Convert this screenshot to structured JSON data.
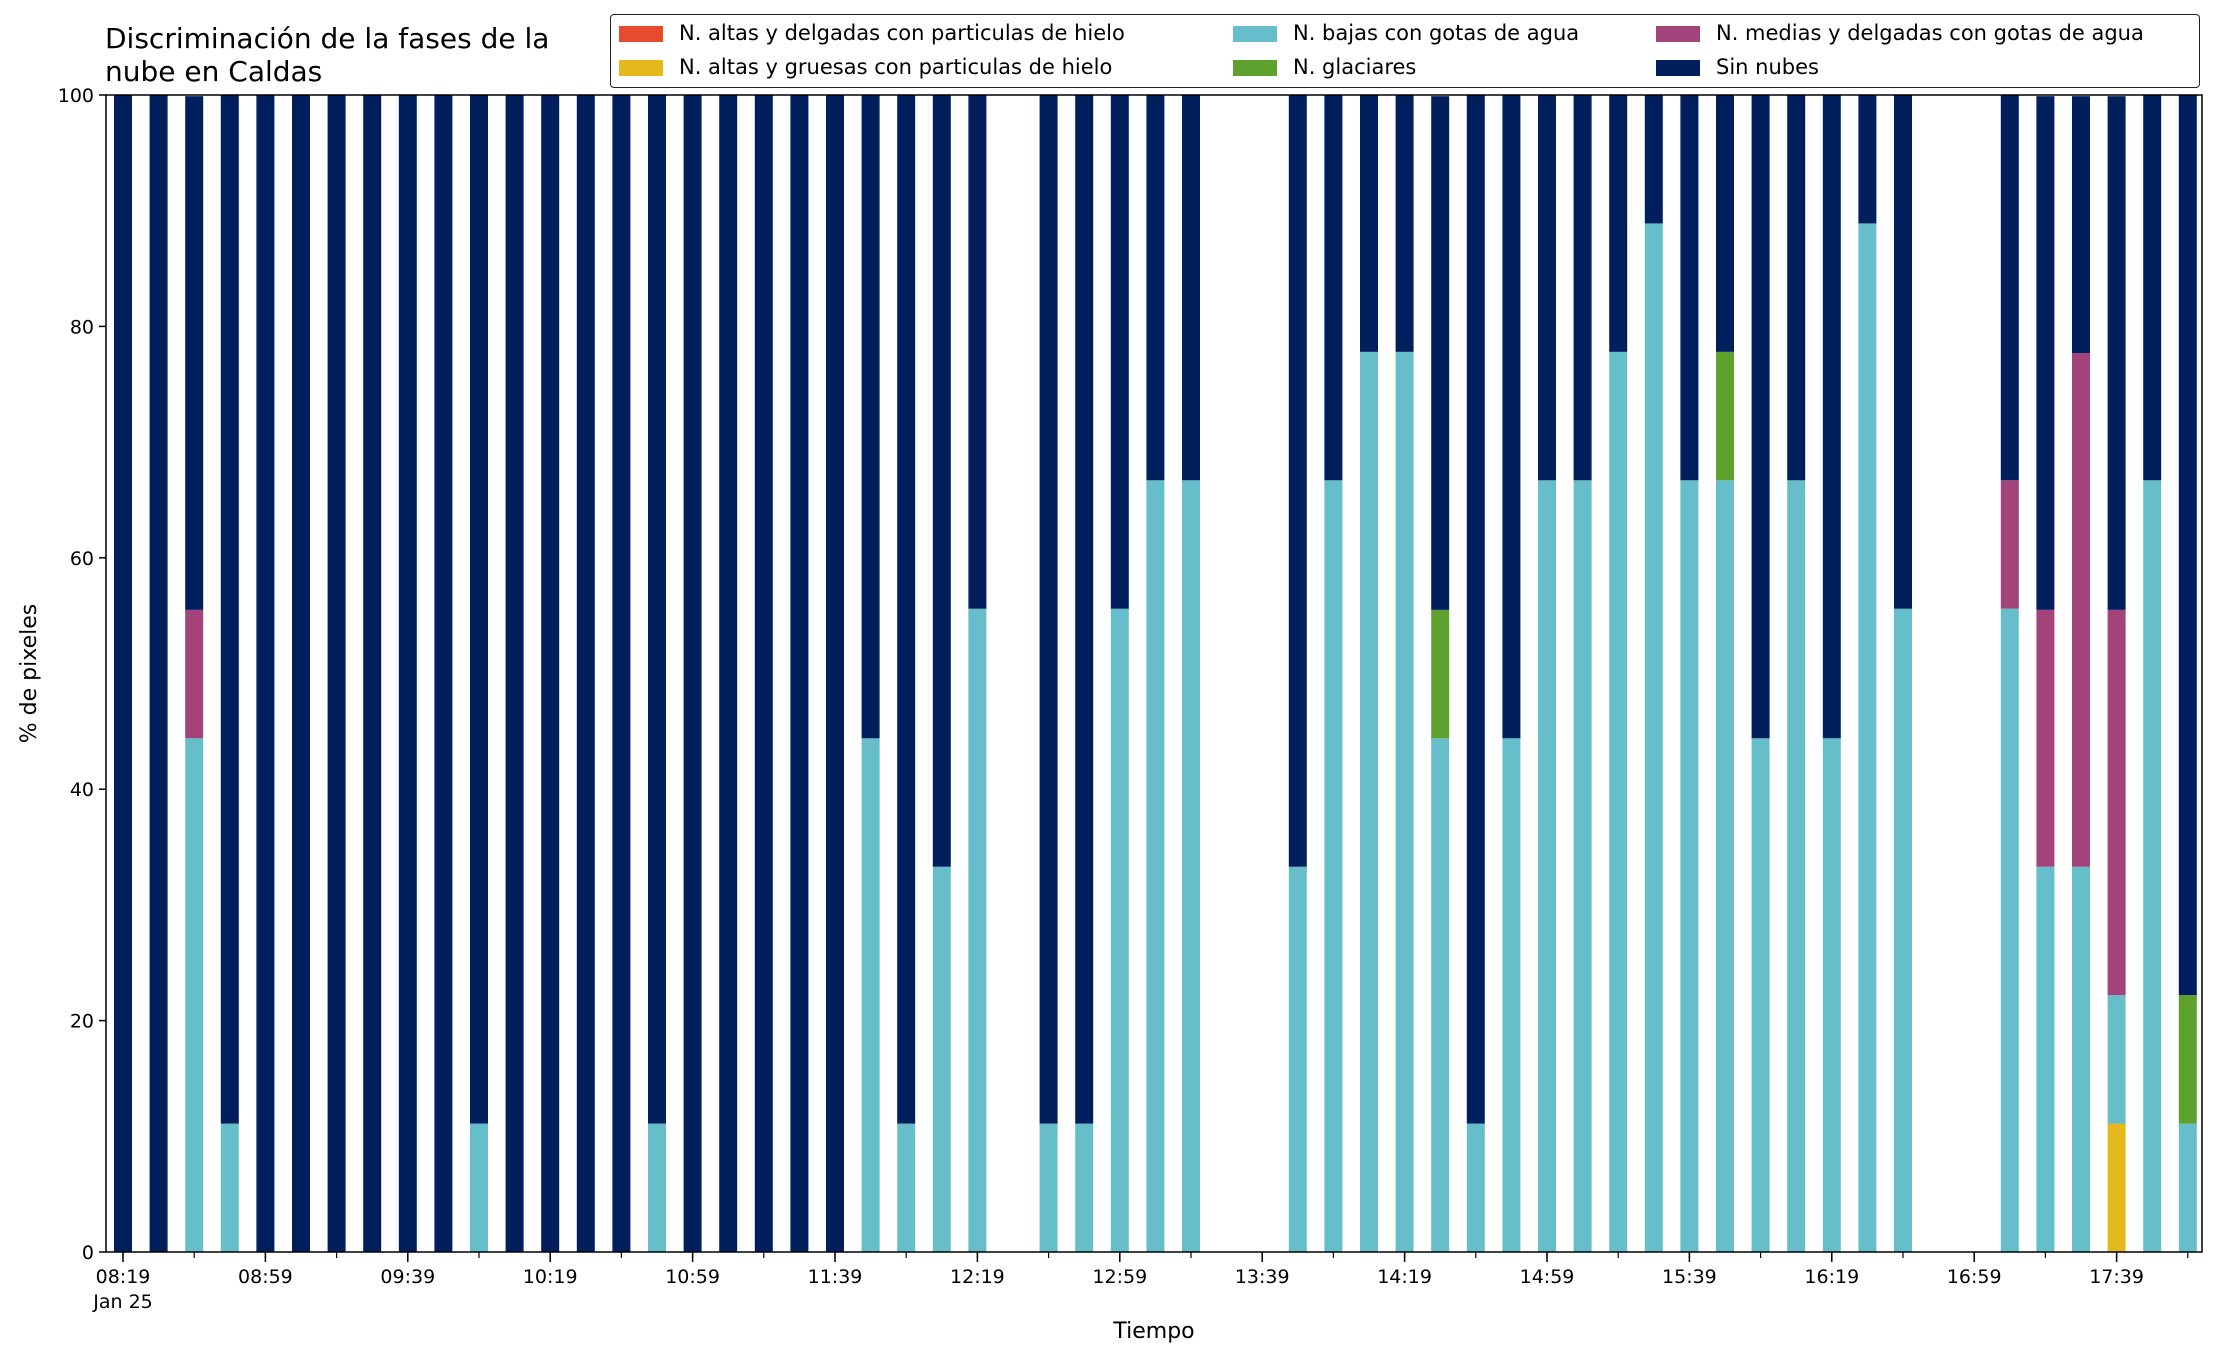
{
  "chart_data": {
    "type": "bar",
    "stacked": true,
    "title": "Discriminación de la fases de la nube en Caldas",
    "title_lines": [
      "Discriminación de la fases de la",
      "nube en Caldas"
    ],
    "xlabel": "Tiempo",
    "ylabel": "% de pixeles",
    "ylim": [
      0,
      100
    ],
    "yticks": [
      0,
      20,
      40,
      60,
      80,
      100
    ],
    "xtick_labels": [
      "08:19",
      "08:59",
      "09:39",
      "10:19",
      "10:59",
      "11:39",
      "12:19",
      "12:59",
      "13:39",
      "14:19",
      "14:59",
      "15:39",
      "16:19",
      "16:59",
      "17:39"
    ],
    "xtick_sublabel": "Jan 25",
    "legend_position": "top",
    "grid": false,
    "bar_count": 59,
    "series": [
      {
        "name": "N. altas y delgadas con particulas de hielo",
        "color": "#e84a2f",
        "values": [
          0,
          0,
          0,
          0,
          0,
          0,
          0,
          0,
          0,
          0,
          0,
          0,
          0,
          0,
          0,
          0,
          0,
          0,
          0,
          0,
          0,
          0,
          0,
          0,
          0,
          0,
          0,
          0,
          0,
          0,
          0,
          0,
          0,
          0,
          0,
          0,
          0,
          0,
          0,
          0,
          0,
          0,
          0,
          0,
          0,
          0,
          0,
          0,
          0,
          0,
          0,
          0,
          0,
          0,
          0,
          0,
          0,
          0,
          0
        ]
      },
      {
        "name": "N. altas y gruesas con particulas de hielo",
        "color": "#e5b81b",
        "values": [
          0,
          0,
          0,
          0,
          0,
          0,
          0,
          0,
          0,
          0,
          0,
          0,
          0,
          0,
          0,
          0,
          0,
          0,
          0,
          0,
          0,
          0,
          0,
          0,
          0,
          0,
          0,
          0,
          0,
          0,
          0,
          0,
          0,
          0,
          0,
          0,
          0,
          0,
          0,
          0,
          0,
          0,
          0,
          0,
          0,
          0,
          0,
          0,
          0,
          0,
          0,
          0,
          0,
          0,
          0,
          0,
          11.1,
          0,
          0
        ]
      },
      {
        "name": "N. bajas con gotas de agua",
        "color": "#65bec9",
        "values": [
          0,
          0,
          44.4,
          11.1,
          0,
          0,
          0,
          0,
          0,
          0,
          11.1,
          0,
          0,
          0,
          0,
          11.1,
          0,
          0,
          0,
          0,
          0,
          44.4,
          11.1,
          33.3,
          55.6,
          0,
          11.1,
          11.1,
          55.6,
          66.7,
          66.7,
          0,
          0,
          33.3,
          66.7,
          77.8,
          77.8,
          44.4,
          11.1,
          44.4,
          66.7,
          66.7,
          77.8,
          88.9,
          66.7,
          66.7,
          44.4,
          66.7,
          44.4,
          88.9,
          55.6,
          0,
          0,
          55.6,
          33.3,
          33.3,
          11.1,
          66.7,
          11.1
        ]
      },
      {
        "name": "N. glaciares",
        "color": "#5fa12e",
        "values": [
          0,
          0,
          0,
          0,
          0,
          0,
          0,
          0,
          0,
          0,
          0,
          0,
          0,
          0,
          0,
          0,
          0,
          0,
          0,
          0,
          0,
          0,
          0,
          0,
          0,
          0,
          0,
          0,
          0,
          0,
          0,
          0,
          0,
          0,
          0,
          0,
          0,
          11.1,
          0,
          0,
          0,
          0,
          0,
          0,
          0,
          11.1,
          0,
          0,
          0,
          0,
          0,
          0,
          0,
          0,
          0,
          0,
          0,
          0,
          11.1
        ]
      },
      {
        "name": "N. medias y delgadas con gotas de agua",
        "color": "#a24479",
        "values": [
          0,
          0,
          11.1,
          0,
          0,
          0,
          0,
          0,
          0,
          0,
          0,
          0,
          0,
          0,
          0,
          0,
          0,
          0,
          0,
          0,
          0,
          0,
          0,
          0,
          0,
          0,
          0,
          0,
          0,
          0,
          0,
          0,
          0,
          0,
          0,
          0,
          0,
          0,
          0,
          0,
          0,
          0,
          0,
          0,
          0,
          0,
          0,
          0,
          0,
          0,
          0,
          0,
          0,
          11.1,
          22.2,
          44.4,
          33.3,
          0,
          0
        ]
      },
      {
        "name": "Sin nubes",
        "color": "#001f5c",
        "values": [
          100,
          100,
          44.4,
          88.9,
          100,
          100,
          100,
          100,
          100,
          100,
          88.9,
          100,
          100,
          100,
          100,
          88.9,
          100,
          100,
          100,
          100,
          100,
          55.6,
          88.9,
          66.7,
          44.4,
          0,
          88.9,
          88.9,
          44.4,
          33.3,
          33.3,
          0,
          0,
          66.7,
          33.3,
          22.2,
          22.2,
          44.4,
          88.9,
          55.6,
          33.3,
          33.3,
          22.2,
          11.1,
          33.3,
          22.2,
          55.6,
          33.3,
          55.6,
          11.1,
          44.4,
          0,
          0,
          33.3,
          44.4,
          22.2,
          44.4,
          33.3,
          77.8
        ]
      }
    ]
  }
}
